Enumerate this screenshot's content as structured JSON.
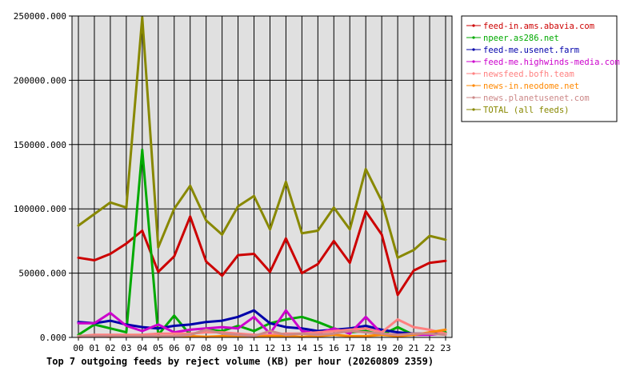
{
  "chart_data": {
    "type": "line",
    "title": "Top 7 outgoing feeds by reject volume (KB) per hour (20260809 2359)",
    "xlabel": "",
    "ylabel": "",
    "categories": [
      "00",
      "01",
      "02",
      "03",
      "04",
      "05",
      "06",
      "07",
      "08",
      "09",
      "10",
      "11",
      "12",
      "13",
      "14",
      "15",
      "16",
      "17",
      "18",
      "19",
      "20",
      "21",
      "22",
      "23"
    ],
    "y_ticks": [
      "0.000",
      "50000.000",
      "100000.000",
      "150000.000",
      "200000.000",
      "250000.000"
    ],
    "ylim": [
      0,
      250000
    ],
    "grid": true,
    "legend_position": "top-right",
    "plot_background": "#e0e0e0",
    "series": [
      {
        "name": "feed-in.ams.abavia.com",
        "color": "#cc0000",
        "values": [
          62000,
          60000,
          65000,
          73000,
          83000,
          51000,
          63000,
          94000,
          59000,
          48000,
          64000,
          65000,
          51000,
          77000,
          50000,
          57000,
          75000,
          58000,
          98000,
          80000,
          33000,
          52000,
          58000,
          59500
        ]
      },
      {
        "name": "npeer.as286.net",
        "color": "#00aa00",
        "values": [
          2000,
          10000,
          7000,
          4000,
          146000,
          2000,
          17000,
          2000,
          6000,
          5000,
          9000,
          5000,
          11000,
          14000,
          16000,
          12000,
          7000,
          4000,
          5000,
          2000,
          8000,
          2000,
          3000,
          4000
        ]
      },
      {
        "name": "feed-me.usenet.farm",
        "color": "#0000aa",
        "values": [
          12000,
          11000,
          13000,
          10000,
          8000,
          7000,
          9000,
          10000,
          12000,
          13000,
          16000,
          21000,
          11000,
          8000,
          7000,
          5000,
          6000,
          7000,
          9000,
          6000,
          4000,
          3000,
          3000,
          3000
        ]
      },
      {
        "name": "feed-me.highwinds-media.com",
        "color": "#cc00cc",
        "values": [
          11000,
          11000,
          19000,
          9000,
          5000,
          10000,
          4000,
          6000,
          7000,
          8000,
          7000,
          16000,
          3000,
          21000,
          5000,
          3000,
          7000,
          3000,
          16000,
          3000,
          2000,
          2000,
          2000,
          3000
        ]
      },
      {
        "name": "newsfeed.bofh.team",
        "color": "#ff8080",
        "values": [
          1000,
          2000,
          2000,
          2000,
          2000,
          3000,
          3000,
          3000,
          4000,
          4000,
          3000,
          2000,
          2000,
          3000,
          3000,
          4000,
          5000,
          6000,
          7000,
          4000,
          14000,
          8000,
          6000,
          3000
        ]
      },
      {
        "name": "news-in.neodome.net",
        "color": "#ff8800",
        "values": [
          500,
          1000,
          500,
          1000,
          1000,
          500,
          1000,
          1000,
          500,
          1000,
          1000,
          500,
          1000,
          1000,
          500,
          1000,
          2000,
          1000,
          1000,
          2000,
          1000,
          2000,
          4000,
          6000
        ]
      },
      {
        "name": "news.planetusenet.com",
        "color": "#cc8888",
        "values": [
          1000,
          1000,
          1000,
          1000,
          1000,
          1000,
          1000,
          2000,
          6000,
          3000,
          2000,
          1000,
          5000,
          2000,
          3000,
          2000,
          3000,
          5000,
          4000,
          3000,
          2000,
          3000,
          3000,
          2000
        ]
      },
      {
        "name": "TOTAL (all feeds)",
        "color": "#888800",
        "values": [
          87000,
          96000,
          105000,
          101000,
          249000,
          70000,
          100000,
          118000,
          91000,
          80000,
          102000,
          110000,
          84000,
          121000,
          81000,
          83000,
          101000,
          84000,
          131000,
          106000,
          62000,
          68000,
          79000,
          76000
        ]
      }
    ]
  }
}
